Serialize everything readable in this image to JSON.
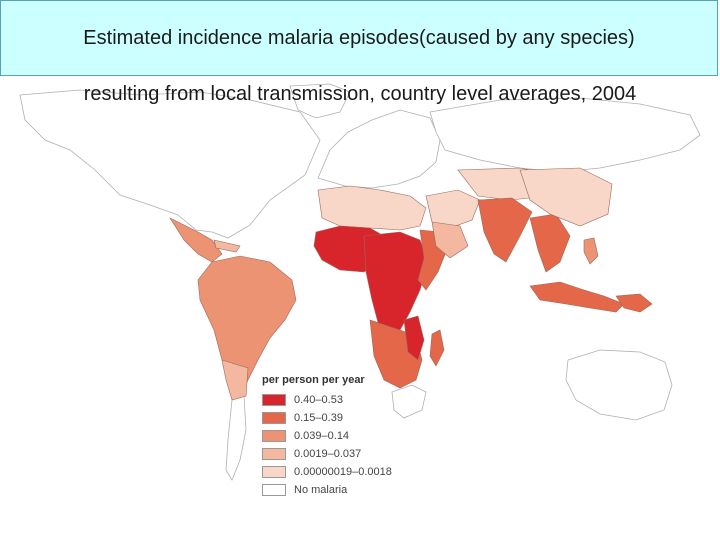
{
  "title": "Estimated incidence malaria episodes(caused by any species)",
  "subtitle": "resulting from local transmission, country level averages, 2004",
  "legend": {
    "title": "per person per year",
    "items": [
      {
        "label": "0.40–0.53",
        "color": "#d7252b"
      },
      {
        "label": "0.15–0.39",
        "color": "#e4674a"
      },
      {
        "label": "0.039–0.14",
        "color": "#ec9374"
      },
      {
        "label": "0.0019–0.037",
        "color": "#f4b8a0"
      },
      {
        "label": "0.00000019–0.0018",
        "color": "#f8d6c8"
      },
      {
        "label": "No malaria",
        "color": "#ffffff"
      }
    ]
  }
}
